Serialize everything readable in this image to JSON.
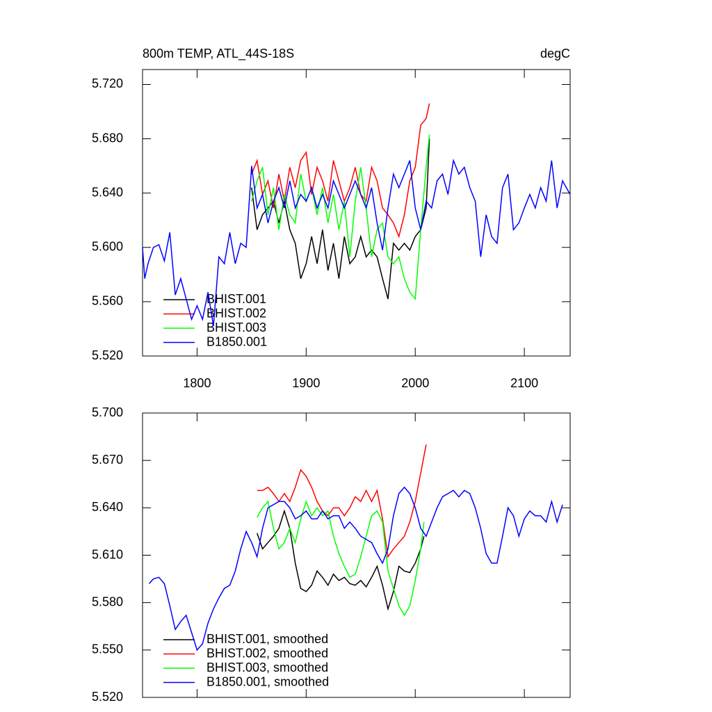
{
  "chart_data": [
    {
      "type": "line",
      "title": "800m TEMP, ATL_44S-18S",
      "units": "degC",
      "xlim": [
        1750,
        2142
      ],
      "xticks": [
        1800,
        1900,
        2000,
        2100
      ],
      "ylim": [
        5.52,
        5.731
      ],
      "yticks": [
        {
          "value": 5.52,
          "label": "5.520"
        },
        {
          "value": 5.56,
          "label": "5.560"
        },
        {
          "value": 5.6,
          "label": "5.600"
        },
        {
          "value": 5.64,
          "label": "5.640"
        },
        {
          "value": 5.68,
          "label": "5.680"
        },
        {
          "value": 5.72,
          "label": "5.720"
        }
      ],
      "series": [
        {
          "name": "BHIST.001",
          "color": "#000000",
          "x": [
            1850,
            1855,
            1860,
            1865,
            1870,
            1875,
            1880,
            1885,
            1890,
            1895,
            1900,
            1905,
            1910,
            1915,
            1920,
            1925,
            1930,
            1935,
            1940,
            1945,
            1950,
            1955,
            1960,
            1965,
            1970,
            1975,
            1980,
            1985,
            1990,
            1995,
            2000,
            2005,
            2010,
            2013
          ],
          "values": [
            5.644,
            5.613,
            5.624,
            5.629,
            5.634,
            5.618,
            5.634,
            5.613,
            5.603,
            5.577,
            5.588,
            5.608,
            5.588,
            5.613,
            5.583,
            5.603,
            5.577,
            5.608,
            5.588,
            5.593,
            5.608,
            5.593,
            5.598,
            5.593,
            5.577,
            5.562,
            5.603,
            5.598,
            5.603,
            5.598,
            5.608,
            5.613,
            5.629,
            5.68
          ]
        },
        {
          "name": "BHIST.002",
          "color": "#ff0000",
          "x": [
            1850,
            1855,
            1860,
            1865,
            1870,
            1875,
            1880,
            1885,
            1890,
            1895,
            1900,
            1905,
            1910,
            1915,
            1920,
            1925,
            1930,
            1935,
            1940,
            1945,
            1950,
            1955,
            1960,
            1965,
            1970,
            1975,
            1980,
            1985,
            1990,
            1995,
            2000,
            2005,
            2010,
            2013
          ],
          "values": [
            5.654,
            5.664,
            5.639,
            5.649,
            5.629,
            5.654,
            5.634,
            5.659,
            5.644,
            5.664,
            5.67,
            5.639,
            5.659,
            5.649,
            5.634,
            5.664,
            5.649,
            5.634,
            5.644,
            5.659,
            5.639,
            5.634,
            5.659,
            5.649,
            5.629,
            5.624,
            5.618,
            5.608,
            5.624,
            5.649,
            5.659,
            5.69,
            5.695,
            5.706
          ]
        },
        {
          "name": "BHIST.003",
          "color": "#00ff00",
          "x": [
            1850,
            1855,
            1860,
            1865,
            1870,
            1875,
            1880,
            1885,
            1890,
            1895,
            1900,
            1905,
            1910,
            1915,
            1920,
            1925,
            1930,
            1935,
            1940,
            1945,
            1950,
            1955,
            1960,
            1965,
            1970,
            1975,
            1980,
            1985,
            1990,
            1995,
            2000,
            2005,
            2010,
            2013
          ],
          "values": [
            5.634,
            5.649,
            5.659,
            5.624,
            5.644,
            5.613,
            5.639,
            5.624,
            5.618,
            5.654,
            5.634,
            5.644,
            5.624,
            5.644,
            5.618,
            5.639,
            5.613,
            5.634,
            5.593,
            5.634,
            5.659,
            5.629,
            5.593,
            5.613,
            5.618,
            5.593,
            5.588,
            5.593,
            5.577,
            5.567,
            5.562,
            5.613,
            5.659,
            5.683
          ]
        },
        {
          "name": "B1850.001",
          "color": "#0000ff",
          "x": [
            1750,
            1752,
            1755,
            1760,
            1765,
            1770,
            1775,
            1780,
            1785,
            1790,
            1795,
            1800,
            1805,
            1810,
            1815,
            1820,
            1825,
            1830,
            1835,
            1840,
            1845,
            1850,
            1855,
            1860,
            1865,
            1870,
            1875,
            1880,
            1885,
            1890,
            1895,
            1900,
            1905,
            1910,
            1915,
            1920,
            1925,
            1930,
            1935,
            1940,
            1945,
            1950,
            1955,
            1960,
            1965,
            1970,
            1975,
            1980,
            1985,
            1990,
            1995,
            2000,
            2005,
            2010,
            2015,
            2020,
            2025,
            2030,
            2035,
            2040,
            2045,
            2050,
            2055,
            2060,
            2065,
            2070,
            2075,
            2080,
            2085,
            2090,
            2095,
            2100,
            2105,
            2110,
            2115,
            2120,
            2125,
            2130,
            2135,
            2142
          ],
          "values": [
            5.6,
            5.577,
            5.588,
            5.6,
            5.602,
            5.59,
            5.611,
            5.565,
            5.577,
            5.562,
            5.547,
            5.557,
            5.547,
            5.567,
            5.542,
            5.593,
            5.588,
            5.611,
            5.588,
            5.603,
            5.6,
            5.66,
            5.629,
            5.639,
            5.618,
            5.634,
            5.644,
            5.629,
            5.649,
            5.629,
            5.639,
            5.634,
            5.644,
            5.629,
            5.639,
            5.629,
            5.649,
            5.639,
            5.629,
            5.639,
            5.649,
            5.639,
            5.629,
            5.644,
            5.618,
            5.598,
            5.629,
            5.654,
            5.644,
            5.654,
            5.664,
            5.629,
            5.613,
            5.634,
            5.629,
            5.649,
            5.654,
            5.639,
            5.664,
            5.654,
            5.659,
            5.644,
            5.634,
            5.593,
            5.624,
            5.608,
            5.603,
            5.644,
            5.654,
            5.613,
            5.618,
            5.629,
            5.639,
            5.629,
            5.644,
            5.634,
            5.664,
            5.629,
            5.649,
            5.639
          ]
        }
      ]
    },
    {
      "type": "line",
      "xlim": [
        1750,
        2142
      ],
      "xticks": [
        1800,
        1900,
        2000,
        2100
      ],
      "ylim": [
        5.52,
        5.7
      ],
      "yticks": [
        {
          "value": 5.52,
          "label": "5.520"
        },
        {
          "value": 5.55,
          "label": "5.550"
        },
        {
          "value": 5.58,
          "label": "5.580"
        },
        {
          "value": 5.61,
          "label": "5.610"
        },
        {
          "value": 5.64,
          "label": "5.640"
        },
        {
          "value": 5.67,
          "label": "5.670"
        },
        {
          "value": 5.7,
          "label": "5.700"
        }
      ],
      "series": [
        {
          "name": "BHIST.001, smoothed",
          "color": "#000000",
          "x": [
            1855,
            1860,
            1865,
            1870,
            1875,
            1880,
            1885,
            1890,
            1895,
            1900,
            1905,
            1910,
            1915,
            1920,
            1925,
            1930,
            1935,
            1940,
            1945,
            1950,
            1955,
            1960,
            1965,
            1970,
            1975,
            1980,
            1985,
            1990,
            1995,
            2000,
            2005,
            2008
          ],
          "values": [
            5.624,
            5.614,
            5.618,
            5.622,
            5.627,
            5.638,
            5.627,
            5.605,
            5.589,
            5.587,
            5.591,
            5.6,
            5.596,
            5.591,
            5.598,
            5.594,
            5.596,
            5.592,
            5.591,
            5.594,
            5.59,
            5.596,
            5.603,
            5.591,
            5.576,
            5.587,
            5.603,
            5.6,
            5.599,
            5.605,
            5.614,
            5.622
          ]
        },
        {
          "name": "BHIST.002, smoothed",
          "color": "#ff0000",
          "x": [
            1855,
            1860,
            1865,
            1870,
            1875,
            1880,
            1885,
            1890,
            1895,
            1900,
            1905,
            1910,
            1915,
            1920,
            1925,
            1930,
            1935,
            1940,
            1945,
            1950,
            1955,
            1960,
            1965,
            1970,
            1975,
            1980,
            1985,
            1990,
            1995,
            2000,
            2005,
            2010
          ],
          "values": [
            5.651,
            5.651,
            5.653,
            5.649,
            5.644,
            5.649,
            5.644,
            5.653,
            5.664,
            5.66,
            5.653,
            5.644,
            5.638,
            5.635,
            5.64,
            5.64,
            5.635,
            5.64,
            5.647,
            5.644,
            5.651,
            5.644,
            5.651,
            5.633,
            5.609,
            5.614,
            5.618,
            5.622,
            5.631,
            5.644,
            5.662,
            5.68
          ]
        },
        {
          "name": "BHIST.003, smoothed",
          "color": "#00ff00",
          "x": [
            1855,
            1860,
            1865,
            1870,
            1875,
            1880,
            1885,
            1890,
            1895,
            1900,
            1905,
            1910,
            1915,
            1920,
            1925,
            1930,
            1935,
            1940,
            1945,
            1950,
            1955,
            1960,
            1965,
            1970,
            1975,
            1980,
            1985,
            1990,
            1995,
            2000,
            2005,
            2008
          ],
          "values": [
            5.634,
            5.64,
            5.644,
            5.627,
            5.614,
            5.618,
            5.627,
            5.618,
            5.633,
            5.644,
            5.635,
            5.64,
            5.635,
            5.638,
            5.622,
            5.611,
            5.603,
            5.596,
            5.598,
            5.609,
            5.622,
            5.635,
            5.638,
            5.631,
            5.6,
            5.589,
            5.578,
            5.572,
            5.578,
            5.594,
            5.614,
            5.631
          ]
        },
        {
          "name": "B1850.001, smoothed",
          "color": "#0000ff",
          "x": [
            1756,
            1760,
            1765,
            1770,
            1775,
            1780,
            1785,
            1790,
            1795,
            1800,
            1805,
            1810,
            1815,
            1820,
            1825,
            1830,
            1835,
            1840,
            1845,
            1850,
            1855,
            1860,
            1865,
            1870,
            1875,
            1880,
            1885,
            1890,
            1895,
            1900,
            1905,
            1910,
            1915,
            1920,
            1925,
            1930,
            1935,
            1940,
            1945,
            1950,
            1955,
            1960,
            1965,
            1970,
            1975,
            1980,
            1985,
            1990,
            1995,
            2000,
            2005,
            2010,
            2015,
            2020,
            2025,
            2030,
            2035,
            2040,
            2045,
            2050,
            2055,
            2060,
            2065,
            2070,
            2075,
            2080,
            2085,
            2090,
            2095,
            2100,
            2105,
            2110,
            2115,
            2120,
            2125,
            2130,
            2135
          ],
          "values": [
            5.592,
            5.595,
            5.596,
            5.592,
            5.578,
            5.563,
            5.568,
            5.572,
            5.561,
            5.55,
            5.554,
            5.567,
            5.576,
            5.583,
            5.589,
            5.591,
            5.6,
            5.614,
            5.625,
            5.618,
            5.609,
            5.627,
            5.64,
            5.642,
            5.644,
            5.644,
            5.64,
            5.633,
            5.635,
            5.638,
            5.633,
            5.633,
            5.638,
            5.633,
            5.635,
            5.635,
            5.627,
            5.631,
            5.627,
            5.622,
            5.62,
            5.618,
            5.611,
            5.605,
            5.614,
            5.635,
            5.649,
            5.653,
            5.649,
            5.64,
            5.627,
            5.622,
            5.631,
            5.64,
            5.647,
            5.649,
            5.651,
            5.647,
            5.651,
            5.649,
            5.64,
            5.627,
            5.611,
            5.605,
            5.605,
            5.622,
            5.64,
            5.635,
            5.622,
            5.633,
            5.638,
            5.635,
            5.635,
            5.631,
            5.644,
            5.631,
            5.642
          ]
        }
      ]
    }
  ]
}
